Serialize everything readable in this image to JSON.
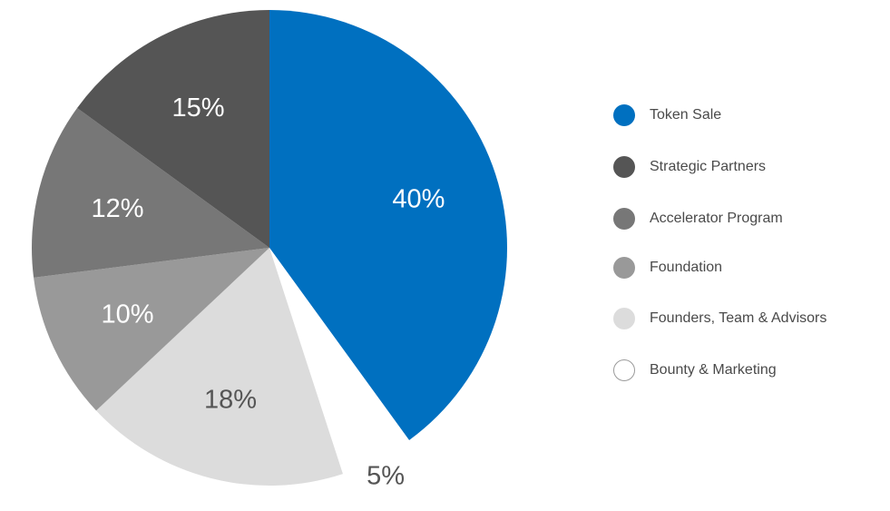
{
  "chart_data": {
    "type": "pie",
    "title": "",
    "start_angle_deg": 0,
    "direction": "clockwise",
    "slices": [
      {
        "label": "Token Sale",
        "value": 40,
        "display": "40%",
        "color": "#0070c0",
        "label_color": "#ffffff"
      },
      {
        "label": "Bounty & Marketing",
        "value": 5,
        "display": "5%",
        "color": "#ffffff",
        "label_color": "#555555"
      },
      {
        "label": "Founders, Team & Advisors",
        "value": 18,
        "display": "18%",
        "color": "#dcdcdc",
        "label_color": "#555555"
      },
      {
        "label": "Foundation",
        "value": 10,
        "display": "10%",
        "color": "#999999",
        "label_color": "#ffffff"
      },
      {
        "label": "Accelerator Program",
        "value": 12,
        "display": "12%",
        "color": "#777777",
        "label_color": "#ffffff"
      },
      {
        "label": "Strategic Partners",
        "value": 15,
        "display": "15%",
        "color": "#555555",
        "label_color": "#ffffff"
      }
    ],
    "legend": {
      "placement": "right",
      "items": [
        {
          "label": "Token Sale",
          "color": "#0070c0"
        },
        {
          "label": "Strategic Partners",
          "color": "#555555"
        },
        {
          "label": "Accelerator Program",
          "color": "#777777"
        },
        {
          "label": "Foundation",
          "color": "#999999"
        },
        {
          "label": "Founders, Team & Advisors",
          "color": "#dcdcdc"
        },
        {
          "label": "Bounty & Marketing",
          "color": "#ffffff"
        }
      ]
    }
  }
}
